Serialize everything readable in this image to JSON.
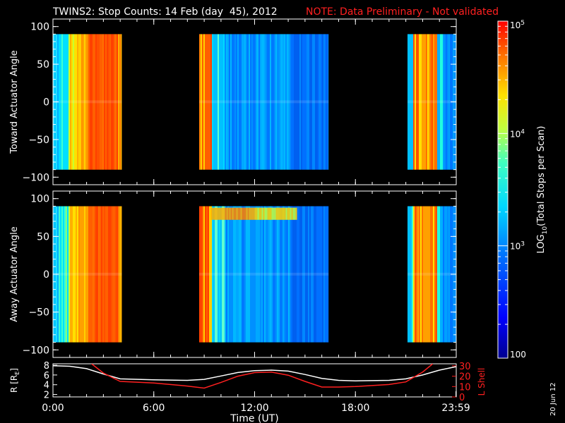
{
  "header": {
    "title": "TWINS2: Stop Counts: 14 Feb (day  45), 2012",
    "note": "NOTE: Data Preliminary - Not validated",
    "note_color": "#ff2020"
  },
  "side_stamp": "20 Jun 12",
  "chart_data": [
    {
      "type": "heatmap",
      "ylabel": "Toward Actuator Angle",
      "xlabel": "",
      "xlim": [
        0,
        24
      ],
      "ylim": [
        -110,
        110
      ],
      "yticks": [
        {
          "v": 100,
          "label": "100"
        },
        {
          "v": 50,
          "label": "50"
        },
        {
          "v": 0,
          "label": "0"
        },
        {
          "v": -50,
          "label": "−50"
        },
        {
          "v": -100,
          "label": "−100"
        }
      ],
      "data_yrange": [
        -90,
        90
      ],
      "data_segments": [
        {
          "start_hour": 0.0,
          "end_hour": 4.1
        },
        {
          "start_hour": 8.7,
          "end_hour": 16.4
        },
        {
          "start_hour": 21.1,
          "end_hour": 23.98
        }
      ]
    },
    {
      "type": "heatmap",
      "ylabel": "Away Actuator Angle",
      "xlabel": "",
      "xlim": [
        0,
        24
      ],
      "ylim": [
        -110,
        110
      ],
      "yticks": [
        {
          "v": 100,
          "label": "100"
        },
        {
          "v": 50,
          "label": "50"
        },
        {
          "v": 0,
          "label": "0"
        },
        {
          "v": -50,
          "label": "−50"
        },
        {
          "v": -100,
          "label": "−100"
        }
      ],
      "data_yrange": [
        -90,
        90
      ],
      "data_segments": [
        {
          "start_hour": 0.0,
          "end_hour": 4.1
        },
        {
          "start_hour": 8.7,
          "end_hour": 16.4
        },
        {
          "start_hour": 21.1,
          "end_hour": 23.98
        }
      ]
    },
    {
      "type": "line",
      "xlabel": "Time (UT)",
      "xlim": [
        0,
        24
      ],
      "xticks": [
        {
          "v": 0,
          "label": "0:00"
        },
        {
          "v": 6,
          "label": "6:00"
        },
        {
          "v": 12,
          "label": "12:00"
        },
        {
          "v": 18,
          "label": "18:00"
        },
        {
          "v": 23.98,
          "label": "23:59"
        }
      ],
      "left_axis": {
        "label_parts": [
          "R [R",
          "E",
          "]"
        ],
        "ylim": [
          1.5,
          8.3
        ],
        "ticks": [
          8,
          6,
          4,
          2
        ],
        "color": "#ffffff"
      },
      "right_axis": {
        "label": "L Shell",
        "ylim": [
          0,
          32
        ],
        "ticks": [
          30,
          20,
          10,
          0
        ],
        "color": "#ff2020"
      },
      "series": [
        {
          "axis": "left",
          "color": "#ffffff",
          "x": [
            0,
            1,
            2,
            3,
            4,
            6,
            8,
            9,
            10,
            11,
            12,
            13,
            14,
            15,
            16,
            17,
            18,
            20,
            21,
            22,
            23,
            23.98
          ],
          "y": [
            7.9,
            7.8,
            7.3,
            6.2,
            5.2,
            5.0,
            4.9,
            5.1,
            5.8,
            6.5,
            6.9,
            7.0,
            6.8,
            6.1,
            5.3,
            4.9,
            4.8,
            4.9,
            5.2,
            6.0,
            7.0,
            7.7
          ]
        },
        {
          "axis": "right",
          "color": "#ff2020",
          "x": [
            2.3,
            3,
            4,
            6,
            8,
            9,
            10,
            11,
            12,
            13,
            14,
            15,
            16,
            17,
            18,
            20,
            21,
            22,
            22.6
          ],
          "y": [
            32,
            23,
            15,
            13.5,
            10.5,
            8.5,
            14,
            20,
            23.5,
            24,
            21,
            15,
            9.5,
            9.5,
            10,
            12,
            14.5,
            24,
            32
          ]
        }
      ]
    }
  ],
  "colorbar": {
    "label_parts": [
      "LOG",
      "10",
      "(Total Stops per Scan)"
    ],
    "range": [
      100,
      100000
    ],
    "scale": "log",
    "ticks": [
      {
        "v": 100000,
        "label_base": "10",
        "label_exp": "5"
      },
      {
        "v": 10000,
        "label_base": "10",
        "label_exp": "4"
      },
      {
        "v": 1000,
        "label_base": "10",
        "label_exp": "3"
      },
      {
        "v": 100,
        "label_base": "100",
        "label_exp": ""
      }
    ]
  }
}
